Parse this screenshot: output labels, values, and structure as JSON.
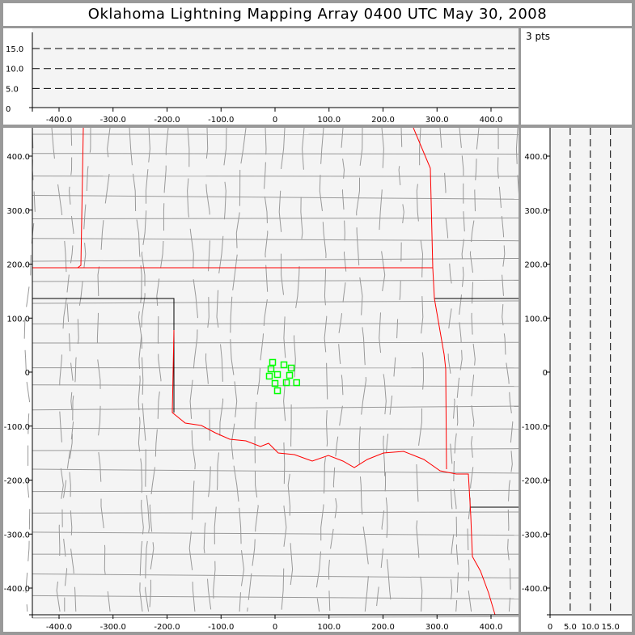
{
  "title": "Oklahoma Lightning Mapping Array   0400 UTC  May 30, 2008",
  "points_label": "3 pts",
  "chart_data": [
    {
      "type": "scatter",
      "panel": "altitude-vs-east-west",
      "xlim": [
        -450,
        450
      ],
      "ylim": [
        0,
        20
      ],
      "xticks": [
        -400,
        -300,
        -200,
        -100,
        0,
        100,
        200,
        300,
        400
      ],
      "xtick_labels": [
        "-400.0",
        "-300.0",
        "-200.0",
        "-100.0",
        "0",
        "100.0",
        "200.0",
        "300.0",
        "400.0"
      ],
      "yticks": [
        0,
        5,
        10,
        15
      ],
      "ytick_labels": [
        "0",
        "5.0",
        "10.0",
        "15.0"
      ],
      "grid": "dashed at 5, 10, 15"
    },
    {
      "type": "scatter",
      "panel": "plan-view-map",
      "xlim": [
        -450,
        450
      ],
      "ylim": [
        -450,
        450
      ],
      "xticks": [
        -400,
        -300,
        -200,
        -100,
        0,
        100,
        200,
        300,
        400
      ],
      "xtick_labels": [
        "-400.0",
        "-300.0",
        "-200.0",
        "-100.0",
        "0",
        "100.0",
        "200.0",
        "300.0",
        "400.0"
      ],
      "yticks": [
        -400,
        -300,
        -200,
        -100,
        0,
        100,
        200,
        300,
        400
      ],
      "ytick_labels": [
        "-400.0",
        "-300.0",
        "-200.0",
        "-100.0",
        "0",
        "100.0",
        "200.0",
        "300.0",
        "400.0"
      ],
      "marker": "hollow square",
      "marker_color": "#00ff00",
      "state_border_color": "#ff0000",
      "county_border_color": "#999999",
      "points": [
        [
          -4.5,
          18
        ],
        [
          -7.5,
          6
        ],
        [
          16.5,
          13.5
        ],
        [
          30,
          7.5
        ],
        [
          -10.5,
          -7.5
        ],
        [
          4.5,
          -4.5
        ],
        [
          27,
          -6
        ],
        [
          0,
          -21
        ],
        [
          21,
          -19.5
        ],
        [
          40,
          -19.5
        ],
        [
          4.5,
          -34.5
        ]
      ]
    },
    {
      "type": "scatter",
      "panel": "north-south-vs-altitude",
      "xlim": [
        0,
        20
      ],
      "ylim": [
        -450,
        450
      ],
      "xticks": [
        0,
        5,
        10,
        15
      ],
      "xtick_labels": [
        "0",
        "5.0",
        "10.0",
        "15.0"
      ],
      "yticks": [
        -400,
        -300,
        -200,
        -100,
        0,
        100,
        200,
        300,
        400
      ],
      "ytick_labels": [
        "-400.0",
        "-300.0",
        "-200.0",
        "-100.0",
        "0",
        "100.0",
        "200.0",
        "300.0",
        "400.0"
      ],
      "grid": "dashed at 5, 10, 15"
    }
  ]
}
